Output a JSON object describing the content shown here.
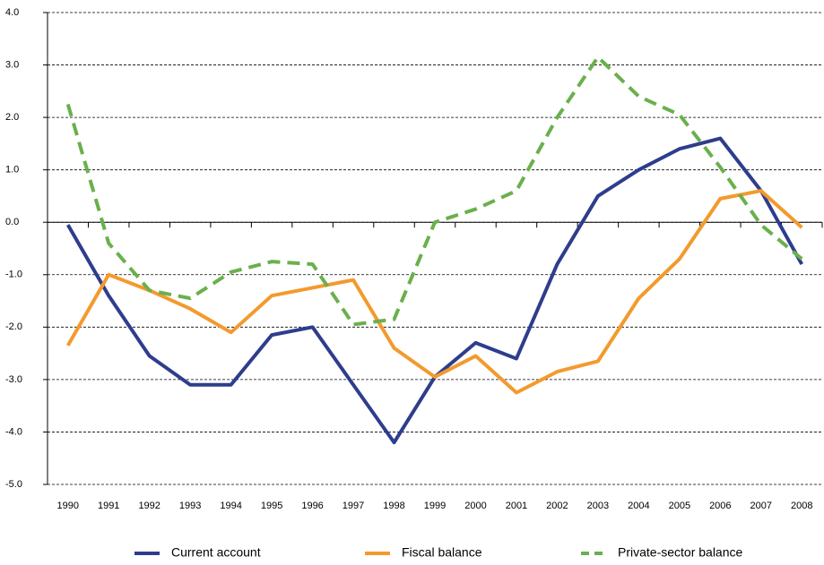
{
  "chart_data": {
    "type": "line",
    "categories": [
      "1990",
      "1991",
      "1992",
      "1993",
      "1994",
      "1995",
      "1996",
      "1997",
      "1998",
      "1999",
      "2000",
      "2001",
      "2002",
      "2003",
      "2004",
      "2005",
      "2006",
      "2007",
      "2008"
    ],
    "series": [
      {
        "name": "Current account",
        "color": "#2e3d8c",
        "style": "solid",
        "values": [
          -0.05,
          -1.4,
          -2.55,
          -3.1,
          -3.1,
          -2.15,
          -2.0,
          -3.1,
          -4.2,
          -2.95,
          -2.3,
          -2.6,
          -0.8,
          0.5,
          1.0,
          1.4,
          1.6,
          0.6,
          -0.8
        ]
      },
      {
        "name": "Fiscal balance",
        "color": "#f39a2d",
        "style": "solid",
        "values": [
          -2.35,
          -1.0,
          -1.3,
          -1.65,
          -2.1,
          -1.4,
          -1.25,
          -1.1,
          -2.4,
          -2.95,
          -2.55,
          -3.25,
          -2.85,
          -2.65,
          -1.45,
          -0.7,
          0.45,
          0.6,
          -0.1
        ]
      },
      {
        "name": "Private-sector balance",
        "color": "#6ab04c",
        "style": "dashed",
        "values": [
          2.25,
          -0.4,
          -1.3,
          -1.45,
          -0.95,
          -0.75,
          -0.8,
          -1.95,
          -1.85,
          0.0,
          0.25,
          0.6,
          2.0,
          3.15,
          2.4,
          2.05,
          1.05,
          -0.05,
          -0.7
        ]
      }
    ],
    "ylim": [
      -5,
      4
    ],
    "yticks": [
      {
        "value": 4,
        "label": "4.0"
      },
      {
        "value": 3,
        "label": "3.0"
      },
      {
        "value": 2,
        "label": "2.0"
      },
      {
        "value": 1,
        "label": "1.0"
      },
      {
        "value": 0,
        "label": "0.0"
      },
      {
        "value": -1,
        "label": "-1.0"
      },
      {
        "value": -2,
        "label": "-2.0"
      },
      {
        "value": -3,
        "label": "-3.0"
      },
      {
        "value": -4,
        "label": "-4.0"
      },
      {
        "value": -5,
        "label": "-5.0"
      }
    ],
    "grid": true,
    "legend": "bottom"
  }
}
